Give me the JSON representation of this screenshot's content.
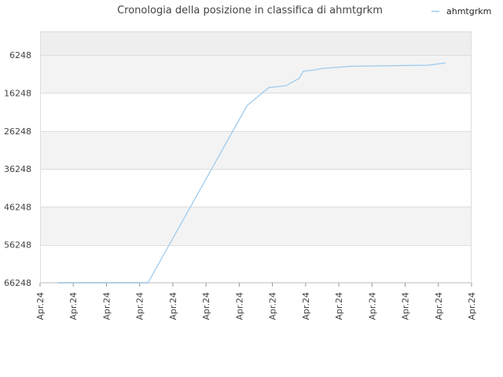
{
  "chart_data": {
    "type": "line",
    "title": "Cronologia della posizione in classifica di ahmtgrkm",
    "xlabel": "",
    "ylabel": "",
    "y_inverted": true,
    "ylim": [
      66248,
      0
    ],
    "yticks": [
      6248,
      16248,
      26248,
      36248,
      46248,
      56248,
      66248
    ],
    "yticks_labels": [
      "6248",
      "16248",
      "26248",
      "36248",
      "46248",
      "56248",
      "66248"
    ],
    "xticks_labels": [
      "Apr.24",
      "Apr.24",
      "Apr.24",
      "Apr.24",
      "Apr.24",
      "Apr.24",
      "Apr.24",
      "Apr.24",
      "Apr.24",
      "Apr.24",
      "Apr.24",
      "Apr.24",
      "Apr.24",
      "Apr.24"
    ],
    "grid": true,
    "band_colors": [
      "#eeeeee",
      "#f3f3f3",
      "#ffffff"
    ],
    "legend": {
      "position": "top-right",
      "entries": [
        "ahmtgrkm"
      ]
    },
    "series": [
      {
        "name": "ahmtgrkm",
        "color": "#99c9ee",
        "x": [
          0.04,
          0.25,
          0.48,
          0.53,
          0.57,
          0.6,
          0.61,
          0.64,
          0.65,
          0.72,
          0.9,
          0.94
        ],
        "values": [
          66248,
          66248,
          19500,
          14800,
          14300,
          12400,
          10500,
          10100,
          9800,
          9200,
          8900,
          8300
        ]
      }
    ]
  }
}
